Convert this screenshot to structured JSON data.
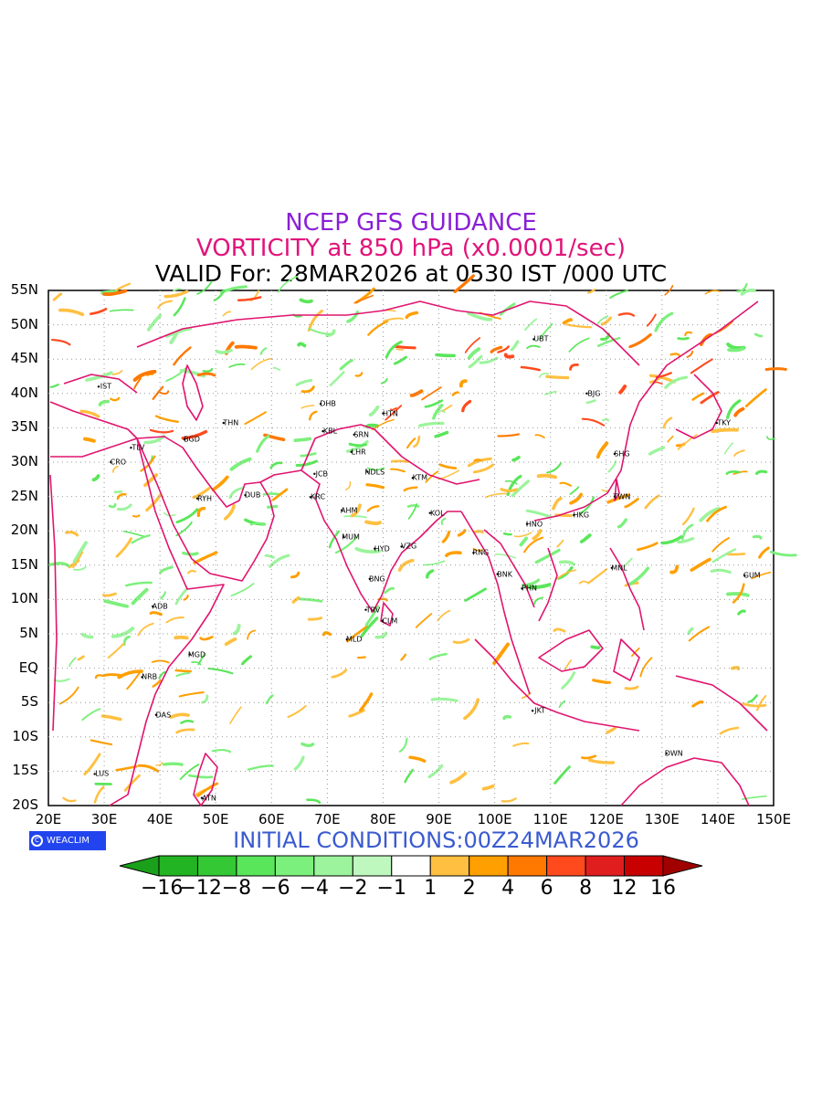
{
  "header": {
    "line1": "NCEP GFS GUIDANCE",
    "line2": "VORTICITY at 850 hPa (x0.0001/sec)",
    "line3": "VALID For: 28MAR2026 at 0530 IST /000 UTC"
  },
  "colors": {
    "line1": "#8a1fd6",
    "line2": "#e0147a",
    "line3": "#000000",
    "init": "#3a5ad0",
    "coast": "#e0146e",
    "grid": "#999999"
  },
  "map": {
    "lat_labels": [
      "55N",
      "50N",
      "45N",
      "40N",
      "35N",
      "30N",
      "25N",
      "20N",
      "15N",
      "10N",
      "5N",
      "EQ",
      "5S",
      "10S",
      "15S",
      "20S"
    ],
    "lon_labels": [
      "20E",
      "30E",
      "40E",
      "50E",
      "60E",
      "70E",
      "80E",
      "90E",
      "100E",
      "110E",
      "120E",
      "130E",
      "140E",
      "150E"
    ],
    "lat_range": [
      -20,
      55
    ],
    "lon_range": [
      20,
      150
    ],
    "cities": [
      {
        "code": "UBT",
        "lon": 107,
        "lat": 47.9
      },
      {
        "code": "BJG",
        "lon": 116.5,
        "lat": 40
      },
      {
        "code": "TKY",
        "lon": 139.8,
        "lat": 35.7
      },
      {
        "code": "SHG",
        "lon": 121.5,
        "lat": 31.2
      },
      {
        "code": "TWN",
        "lon": 121.5,
        "lat": 25
      },
      {
        "code": "HKG",
        "lon": 114.2,
        "lat": 22.3
      },
      {
        "code": "HNO",
        "lon": 105.8,
        "lat": 21
      },
      {
        "code": "MNL",
        "lon": 121,
        "lat": 14.6
      },
      {
        "code": "GUM",
        "lon": 144.8,
        "lat": 13.5
      },
      {
        "code": "RNG",
        "lon": 96.2,
        "lat": 16.8
      },
      {
        "code": "BNK",
        "lon": 100.5,
        "lat": 13.7
      },
      {
        "code": "PHN",
        "lon": 104.9,
        "lat": 11.6
      },
      {
        "code": "JKT",
        "lon": 106.8,
        "lat": -6.2
      },
      {
        "code": "DWN",
        "lon": 130.8,
        "lat": -12.4
      },
      {
        "code": "IST",
        "lon": 29,
        "lat": 41
      },
      {
        "code": "TLV",
        "lon": 34.8,
        "lat": 32.1
      },
      {
        "code": "CRO",
        "lon": 31.2,
        "lat": 30
      },
      {
        "code": "BGD",
        "lon": 44.4,
        "lat": 33.3
      },
      {
        "code": "RYH",
        "lon": 46.7,
        "lat": 24.7
      },
      {
        "code": "DUB",
        "lon": 55.3,
        "lat": 25.2
      },
      {
        "code": "THN",
        "lon": 51.4,
        "lat": 35.7
      },
      {
        "code": "DHB",
        "lon": 68.8,
        "lat": 38.5
      },
      {
        "code": "KBL",
        "lon": 69.2,
        "lat": 34.5
      },
      {
        "code": "HTN",
        "lon": 80,
        "lat": 37.1
      },
      {
        "code": "SRN",
        "lon": 74.8,
        "lat": 34
      },
      {
        "code": "LHR",
        "lon": 74.3,
        "lat": 31.5
      },
      {
        "code": "NDLS",
        "lon": 77.2,
        "lat": 28.6
      },
      {
        "code": "JCB",
        "lon": 67.7,
        "lat": 28.3
      },
      {
        "code": "KRC",
        "lon": 67,
        "lat": 24.9
      },
      {
        "code": "AHM",
        "lon": 72.6,
        "lat": 23
      },
      {
        "code": "KTM",
        "lon": 85.3,
        "lat": 27.7
      },
      {
        "code": "KOL",
        "lon": 88.4,
        "lat": 22.6
      },
      {
        "code": "MUM",
        "lon": 72.9,
        "lat": 19.1
      },
      {
        "code": "HYD",
        "lon": 78.5,
        "lat": 17.4
      },
      {
        "code": "VZG",
        "lon": 83.3,
        "lat": 17.7
      },
      {
        "code": "BNG",
        "lon": 77.6,
        "lat": 13
      },
      {
        "code": "TRV",
        "lon": 76.9,
        "lat": 8.5
      },
      {
        "code": "CLM",
        "lon": 79.9,
        "lat": 6.9
      },
      {
        "code": "MLD",
        "lon": 73.5,
        "lat": 4.2
      },
      {
        "code": "ADB",
        "lon": 38.7,
        "lat": 9
      },
      {
        "code": "MGD",
        "lon": 45.3,
        "lat": 2
      },
      {
        "code": "NRB",
        "lon": 36.8,
        "lat": -1.3
      },
      {
        "code": "DAS",
        "lon": 39.3,
        "lat": -6.8
      },
      {
        "code": "LUS",
        "lon": 28.3,
        "lat": -15.4
      },
      {
        "code": "ATN",
        "lon": 47.5,
        "lat": -18.9
      }
    ]
  },
  "badge": {
    "icon": "copyright-icon",
    "text": "WEACLIM"
  },
  "init_text": "INITIAL CONDITIONS:00Z24MAR2026",
  "colorbar": {
    "labels": [
      "−16",
      "−12",
      "−8",
      "−6",
      "−4",
      "−2",
      "−1",
      "1",
      "2",
      "4",
      "6",
      "8",
      "12",
      "16"
    ],
    "colors": [
      "#1aa01a",
      "#22b422",
      "#34c834",
      "#5ae65a",
      "#7cf07c",
      "#9cf49c",
      "#bef8be",
      "#ffffff",
      "#ffc041",
      "#ff9f00",
      "#ff7800",
      "#ff4a1e",
      "#e01e1e",
      "#c80000",
      "#a00000"
    ]
  }
}
